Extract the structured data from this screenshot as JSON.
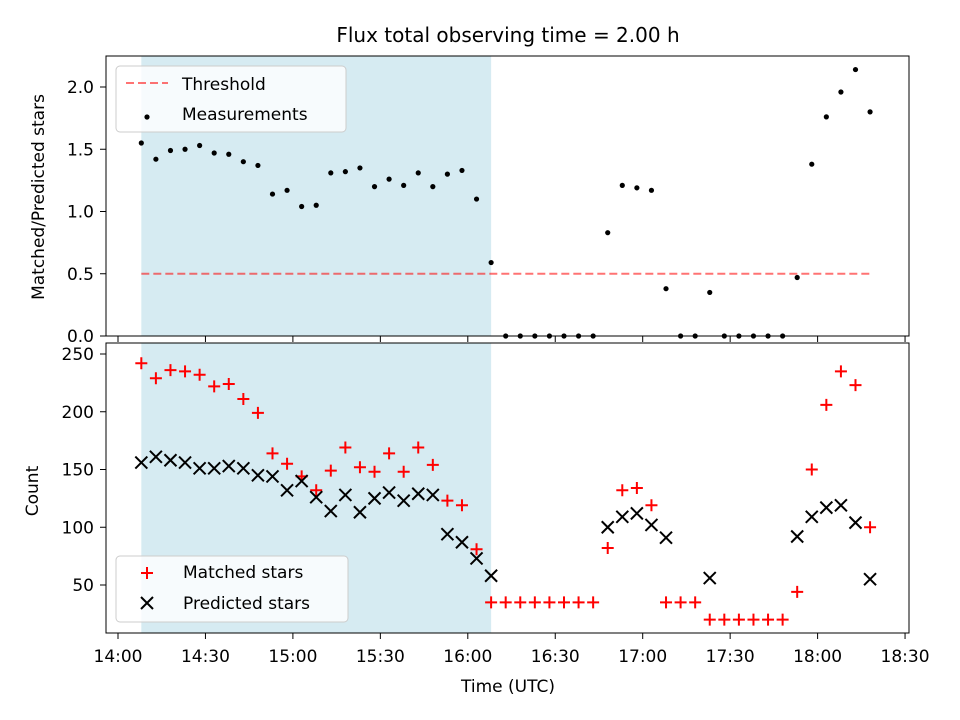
{
  "title": "Flux total observing time = 2.00 h",
  "colors": {
    "shade": "#add8e6",
    "threshold": "#ff0000",
    "measurement": "#000000",
    "matched": "#ff0000",
    "predicted": "#000000",
    "axes": "#000000"
  },
  "chart_data": [
    {
      "type": "scatter",
      "panel": "top",
      "ylabel": "Matched/Predicted stars",
      "ylim": [
        0,
        2.25
      ],
      "yticks": [
        0.0,
        0.5,
        1.0,
        1.5,
        2.0
      ],
      "ytick_labels": [
        "0.0",
        "0.5",
        "1.0",
        "1.5",
        "2.0"
      ],
      "xlim": [
        "14:00",
        "18:30"
      ],
      "x_unit": "time (HH:MM UTC)",
      "shaded_span": {
        "x0": "14:08",
        "x1": "16:08"
      },
      "threshold": {
        "value": 0.5,
        "x0": "14:08",
        "x1": "18:18",
        "style": "dashed"
      },
      "legend": {
        "placement": "top-left",
        "entries": [
          "Threshold",
          "Measurements"
        ]
      },
      "series": [
        {
          "name": "Measurements",
          "marker": "dot",
          "x": [
            "14:08",
            "14:13",
            "14:18",
            "14:23",
            "14:28",
            "14:33",
            "14:38",
            "14:43",
            "14:48",
            "14:53",
            "14:58",
            "15:03",
            "15:08",
            "15:13",
            "15:18",
            "15:23",
            "15:28",
            "15:33",
            "15:38",
            "15:43",
            "15:48",
            "15:53",
            "15:58",
            "16:03",
            "16:08",
            "16:13",
            "16:18",
            "16:23",
            "16:28",
            "16:33",
            "16:38",
            "16:43",
            "16:48",
            "16:53",
            "16:58",
            "17:03",
            "17:08",
            "17:13",
            "17:18",
            "17:23",
            "17:28",
            "17:33",
            "17:38",
            "17:43",
            "17:48",
            "17:53",
            "17:58",
            "18:03",
            "18:08",
            "18:13",
            "18:18"
          ],
          "y": [
            1.55,
            1.42,
            1.49,
            1.5,
            1.53,
            1.47,
            1.46,
            1.4,
            1.37,
            1.14,
            1.17,
            1.04,
            1.05,
            1.31,
            1.32,
            1.35,
            1.2,
            1.26,
            1.21,
            1.31,
            1.2,
            1.3,
            1.33,
            1.1,
            0.59,
            0,
            0,
            0,
            0,
            0,
            0,
            0,
            0.83,
            1.21,
            1.19,
            1.17,
            0.38,
            0,
            0,
            0.35,
            0,
            0,
            0,
            0,
            0,
            0.47,
            1.38,
            1.76,
            1.96,
            2.14,
            1.8
          ]
        }
      ]
    },
    {
      "type": "scatter",
      "panel": "bottom",
      "xlabel": "Time (UTC)",
      "ylabel": "Count",
      "ylim": [
        8,
        253
      ],
      "yticks": [
        50,
        100,
        150,
        200,
        250
      ],
      "ytick_labels": [
        "50",
        "100",
        "150",
        "200",
        "250"
      ],
      "xlim": [
        "14:00",
        "18:30"
      ],
      "x_unit": "time (HH:MM UTC)",
      "xticks": [
        "14:00",
        "14:30",
        "15:00",
        "15:30",
        "16:00",
        "16:30",
        "17:00",
        "17:30",
        "18:00",
        "18:30"
      ],
      "xtick_labels": [
        "14:00",
        "14:30",
        "15:00",
        "15:30",
        "16:00",
        "16:30",
        "17:00",
        "17:30",
        "18:00",
        "18:30"
      ],
      "shaded_span": {
        "x0": "14:08",
        "x1": "16:08"
      },
      "legend": {
        "placement": "bottom-left",
        "entries": [
          "Matched stars",
          "Predicted stars"
        ]
      },
      "series": [
        {
          "name": "Matched stars",
          "marker": "plus",
          "x": [
            "14:08",
            "14:13",
            "14:18",
            "14:23",
            "14:28",
            "14:33",
            "14:38",
            "14:43",
            "14:48",
            "14:53",
            "14:58",
            "15:03",
            "15:08",
            "15:13",
            "15:18",
            "15:23",
            "15:28",
            "15:33",
            "15:38",
            "15:43",
            "15:48",
            "15:53",
            "15:58",
            "16:03",
            "16:08",
            "16:13",
            "16:18",
            "16:23",
            "16:28",
            "16:33",
            "16:38",
            "16:43",
            "16:48",
            "16:53",
            "16:58",
            "17:03",
            "17:08",
            "17:13",
            "17:18",
            "17:23",
            "17:28",
            "17:33",
            "17:38",
            "17:43",
            "17:48",
            "17:53",
            "17:58",
            "18:03",
            "18:08",
            "18:13",
            "18:18"
          ],
          "y": [
            242,
            229,
            236,
            235,
            232,
            222,
            224,
            211,
            199,
            164,
            155,
            144,
            132,
            149,
            169,
            152,
            148,
            164,
            148,
            169,
            154,
            123,
            119,
            81,
            35,
            35,
            35,
            35,
            35,
            35,
            35,
            35,
            82,
            132,
            134,
            119,
            35,
            35,
            35,
            20,
            20,
            20,
            20,
            20,
            20,
            44,
            150,
            206,
            235,
            223,
            100
          ]
        },
        {
          "name": "Predicted stars",
          "marker": "x",
          "x": [
            "14:08",
            "14:13",
            "14:18",
            "14:23",
            "14:28",
            "14:33",
            "14:38",
            "14:43",
            "14:48",
            "14:53",
            "14:58",
            "15:03",
            "15:08",
            "15:13",
            "15:18",
            "15:23",
            "15:28",
            "15:33",
            "15:38",
            "15:43",
            "15:48",
            "15:53",
            "15:58",
            "16:03",
            "16:08",
            "16:48",
            "16:53",
            "16:58",
            "17:03",
            "17:08",
            "17:23",
            "17:53",
            "17:58",
            "18:03",
            "18:08",
            "18:13",
            "18:18"
          ],
          "y": [
            156,
            161,
            158,
            156,
            151,
            151,
            153,
            151,
            145,
            144,
            132,
            140,
            126,
            114,
            128,
            113,
            125,
            130,
            123,
            129,
            128,
            94,
            87,
            73,
            58,
            100,
            109,
            112,
            102,
            91,
            56,
            92,
            109,
            117,
            119,
            104,
            55
          ]
        }
      ]
    }
  ]
}
